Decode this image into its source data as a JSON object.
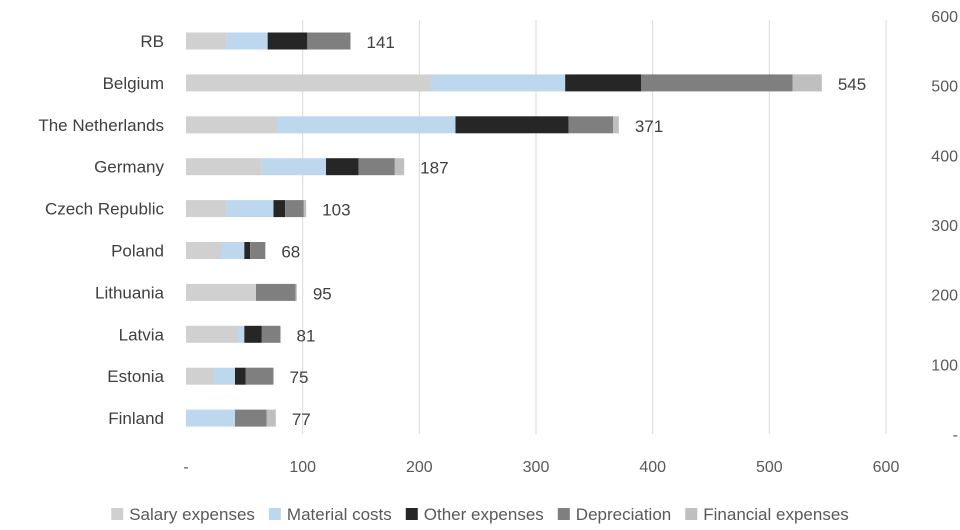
{
  "chart_data": {
    "type": "bar",
    "orientation": "horizontal",
    "stacked": true,
    "categories": [
      "RB",
      "Belgium",
      "The Netherlands",
      "Germany",
      "Czech Republic",
      "Poland",
      "Lithuania",
      "Latvia",
      "Estonia",
      "Finland"
    ],
    "series": [
      {
        "name": "Salary expenses",
        "color": "#d0d0d0",
        "values": [
          35,
          210,
          78,
          65,
          35,
          30,
          60,
          45,
          24,
          0
        ]
      },
      {
        "name": "Material costs",
        "color": "#bdd7ee",
        "values": [
          35,
          115,
          153,
          55,
          40,
          20,
          0,
          5,
          18,
          42
        ]
      },
      {
        "name": "Other expenses",
        "color": "#262626",
        "values": [
          34,
          65,
          97,
          28,
          10,
          5,
          0,
          15,
          9,
          0
        ]
      },
      {
        "name": "Depreciation",
        "color": "#7f7f7f",
        "values": [
          37,
          130,
          38,
          31,
          16,
          13,
          34,
          16,
          24,
          27
        ]
      },
      {
        "name": "Financial expenses",
        "color": "#bfbfbf",
        "values": [
          0,
          25,
          5,
          8,
          2,
          0,
          1,
          0,
          0,
          8
        ]
      }
    ],
    "totals": [
      "141",
      "545",
      "371",
      "187",
      "103",
      "68",
      "95",
      "81",
      "75",
      "77"
    ],
    "x_ticks": [
      "-",
      "100",
      "200",
      "300",
      "400",
      "500",
      "600"
    ],
    "xlim": [
      0,
      600
    ],
    "secondary_axis_ticks": [
      "600",
      "500",
      "400",
      "300",
      "200",
      "100",
      "-"
    ],
    "grid": "vertical",
    "legend_position": "bottom"
  }
}
